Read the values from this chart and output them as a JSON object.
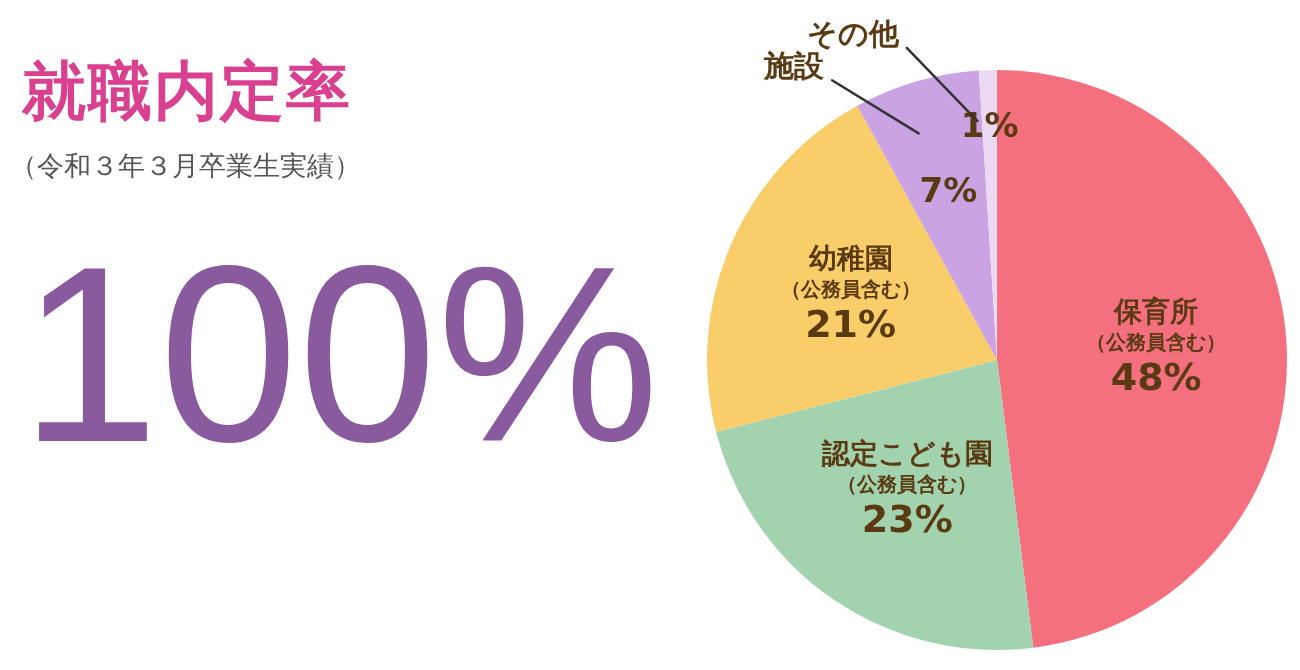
{
  "chart_data": {
    "type": "pie",
    "title": "就職内定率",
    "subtitle": "（令和３年３月卒業生実績）",
    "annotations": [
      "100%"
    ],
    "categories": [
      "保育所（公務員含む）",
      "認定こども園（公務員含む）",
      "幼稚園（公務員含む）",
      "施設",
      "その他"
    ],
    "values": [
      48,
      23,
      21,
      7,
      1
    ],
    "colors": [
      "#f5707e",
      "#a3d3ae",
      "#f9cd6a",
      "#c9a3e2",
      "#ecdaf5"
    ],
    "value_labels": [
      "48%",
      "23%",
      "21%",
      "7%",
      "1%"
    ],
    "legend": false
  }
}
